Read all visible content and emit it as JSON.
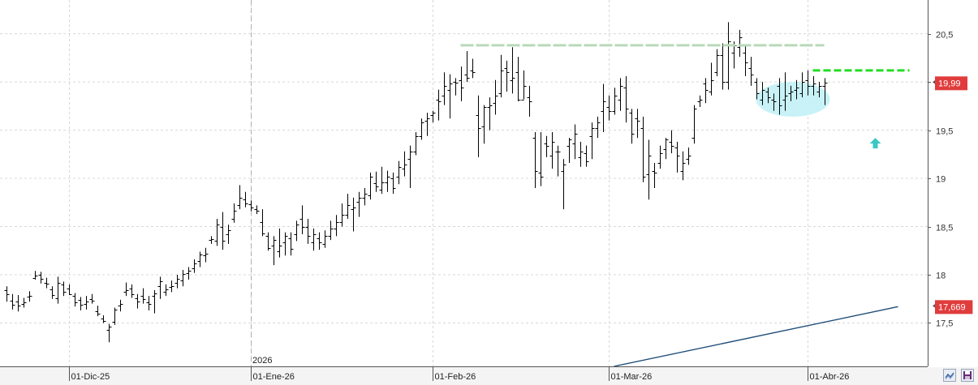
{
  "chart_data": {
    "type": "ohlc",
    "title": "",
    "xlabel": "",
    "ylabel": "",
    "ylim": [
      17.05,
      20.85
    ],
    "y_ticks": [
      {
        "value": 17.5,
        "label": "17,5"
      },
      {
        "value": 18,
        "label": "18"
      },
      {
        "value": 18.5,
        "label": "18,5"
      },
      {
        "value": 19,
        "label": "19"
      },
      {
        "value": 19.5,
        "label": "19,5"
      },
      {
        "value": 20,
        "label": ""
      },
      {
        "value": 20.5,
        "label": "20,5"
      }
    ],
    "x_ticks": [
      {
        "index": 11,
        "label": "01-Dic-25"
      },
      {
        "index": 43,
        "label": "01-Ene-26"
      },
      {
        "index": 75,
        "label": "01-Feb-26"
      },
      {
        "index": 106,
        "label": "01-Mar-26"
      },
      {
        "index": 141,
        "label": "01-Abr-26"
      }
    ],
    "year_marker": {
      "index": 43,
      "label": "2026"
    },
    "grid": true,
    "colors": {
      "bars": "#000000",
      "moving_average": "#1f4e79",
      "resistance_line": "#b9d9b9",
      "support_line": "#22dd22",
      "highlight_ellipse": "#c8f2f7",
      "arrow": "#3cc6c6",
      "price_tag": "#e03c3c",
      "grid": "#d8d8d8"
    },
    "series": [
      {
        "name": "",
        "type": "ohlc",
        "ohlc": [
          [
            17.84,
            17.88,
            17.72,
            17.8
          ],
          [
            17.73,
            17.8,
            17.64,
            17.69
          ],
          [
            17.72,
            17.79,
            17.62,
            17.68
          ],
          [
            17.7,
            17.76,
            17.66,
            17.71
          ],
          [
            17.77,
            17.83,
            17.72,
            17.78
          ],
          [
            17.97,
            18.04,
            17.95,
            17.99
          ],
          [
            18.0,
            18.03,
            17.91,
            17.96
          ],
          [
            17.92,
            17.97,
            17.86,
            17.91
          ],
          [
            17.85,
            17.88,
            17.75,
            17.79
          ],
          [
            17.76,
            17.98,
            17.7,
            17.92
          ],
          [
            17.9,
            17.93,
            17.78,
            17.82
          ],
          [
            17.86,
            17.9,
            17.79,
            17.8
          ],
          [
            17.78,
            17.81,
            17.67,
            17.71
          ],
          [
            17.74,
            17.77,
            17.63,
            17.69
          ],
          [
            17.7,
            17.78,
            17.64,
            17.72
          ],
          [
            17.75,
            17.8,
            17.7,
            17.73
          ],
          [
            17.62,
            17.68,
            17.57,
            17.6
          ],
          [
            17.55,
            17.58,
            17.5,
            17.52
          ],
          [
            17.43,
            17.49,
            17.3,
            17.46
          ],
          [
            17.51,
            17.66,
            17.48,
            17.64
          ],
          [
            17.68,
            17.74,
            17.62,
            17.7
          ],
          [
            17.82,
            17.92,
            17.78,
            17.84
          ],
          [
            17.86,
            17.9,
            17.76,
            17.8
          ],
          [
            17.76,
            17.8,
            17.65,
            17.72
          ],
          [
            17.78,
            17.86,
            17.7,
            17.75
          ],
          [
            17.71,
            17.78,
            17.63,
            17.7
          ],
          [
            17.78,
            17.84,
            17.6,
            17.81
          ],
          [
            17.88,
            17.98,
            17.75,
            17.93
          ],
          [
            17.82,
            17.9,
            17.78,
            17.85
          ],
          [
            17.87,
            17.94,
            17.82,
            17.88
          ],
          [
            17.92,
            18.0,
            17.86,
            17.96
          ],
          [
            17.94,
            18.05,
            17.88,
            18.01
          ],
          [
            18.02,
            18.08,
            17.95,
            18.04
          ],
          [
            18.07,
            18.16,
            18.02,
            18.12
          ],
          [
            18.14,
            18.24,
            18.08,
            18.21
          ],
          [
            18.2,
            18.28,
            18.13,
            18.22
          ],
          [
            18.36,
            18.4,
            18.32,
            18.37
          ],
          [
            18.35,
            18.58,
            18.3,
            18.52
          ],
          [
            18.5,
            18.65,
            18.26,
            18.35
          ],
          [
            18.42,
            18.52,
            18.32,
            18.46
          ],
          [
            18.58,
            18.74,
            18.54,
            18.66
          ],
          [
            18.72,
            18.93,
            18.68,
            18.8
          ],
          [
            18.78,
            18.86,
            18.7,
            18.74
          ],
          [
            18.73,
            18.77,
            18.66,
            18.7
          ],
          [
            18.68,
            18.72,
            18.63,
            18.66
          ],
          [
            18.55,
            18.68,
            18.4,
            18.43
          ],
          [
            18.4,
            18.44,
            18.25,
            18.28
          ],
          [
            18.3,
            18.4,
            18.1,
            18.36
          ],
          [
            18.24,
            18.48,
            18.18,
            18.3
          ],
          [
            18.34,
            18.44,
            18.2,
            18.4
          ],
          [
            18.38,
            18.44,
            18.2,
            18.27
          ],
          [
            18.42,
            18.56,
            18.35,
            18.52
          ],
          [
            18.58,
            18.72,
            18.42,
            18.5
          ],
          [
            18.5,
            18.58,
            18.32,
            18.4
          ],
          [
            18.34,
            18.48,
            18.25,
            18.42
          ],
          [
            18.38,
            18.44,
            18.26,
            18.34
          ],
          [
            18.32,
            18.46,
            18.28,
            18.4
          ],
          [
            18.4,
            18.56,
            18.36,
            18.48
          ],
          [
            18.48,
            18.62,
            18.4,
            18.55
          ],
          [
            18.55,
            18.74,
            18.5,
            18.62
          ],
          [
            18.62,
            18.84,
            18.58,
            18.72
          ],
          [
            18.68,
            18.8,
            18.45,
            18.7
          ],
          [
            18.76,
            18.86,
            18.6,
            18.8
          ],
          [
            18.8,
            18.9,
            18.72,
            18.84
          ],
          [
            18.82,
            19.06,
            18.78,
            19.02
          ],
          [
            18.95,
            19.07,
            18.86,
            18.92
          ],
          [
            18.88,
            19.12,
            18.84,
            18.96
          ],
          [
            18.96,
            19.08,
            18.86,
            19.02
          ],
          [
            19.0,
            19.06,
            18.84,
            18.9
          ],
          [
            19.02,
            19.18,
            18.94,
            19.12
          ],
          [
            19.1,
            19.28,
            19.02,
            19.14
          ],
          [
            19.2,
            19.34,
            18.9,
            19.28
          ],
          [
            19.28,
            19.48,
            19.24,
            19.44
          ],
          [
            19.44,
            19.62,
            19.4,
            19.58
          ],
          [
            19.6,
            19.68,
            19.44,
            19.62
          ],
          [
            19.66,
            19.7,
            19.58,
            19.68
          ],
          [
            19.82,
            19.92,
            19.6,
            19.8
          ],
          [
            19.86,
            20.1,
            19.76,
            19.96
          ],
          [
            19.92,
            20.08,
            19.62,
            19.98
          ],
          [
            20.0,
            20.04,
            19.86,
            19.99
          ],
          [
            20.02,
            20.16,
            19.8,
            19.94
          ],
          [
            20.08,
            20.32,
            20.0,
            20.04
          ],
          [
            20.12,
            20.24,
            20.04,
            20.1
          ],
          [
            19.66,
            19.86,
            19.22,
            19.52
          ],
          [
            19.54,
            19.76,
            19.36,
            19.74
          ],
          [
            19.74,
            19.84,
            19.5,
            19.76
          ],
          [
            19.78,
            20.02,
            19.66,
            19.86
          ],
          [
            19.88,
            20.28,
            19.84,
            20.12
          ],
          [
            20.14,
            20.22,
            19.9,
            20.1
          ],
          [
            20.02,
            20.36,
            19.88,
            20.04
          ],
          [
            20.1,
            20.26,
            19.8,
            19.82
          ],
          [
            19.82,
            20.12,
            19.82,
            19.96
          ],
          [
            19.84,
            19.96,
            19.64,
            19.8
          ],
          [
            19.42,
            19.48,
            18.9,
            19.08
          ],
          [
            19.06,
            19.48,
            18.92,
            19.02
          ],
          [
            19.36,
            19.44,
            19.22,
            19.34
          ],
          [
            19.24,
            19.48,
            19.1,
            19.38
          ],
          [
            19.28,
            19.34,
            19.02,
            19.28
          ],
          [
            19.08,
            19.2,
            18.68,
            19.14
          ],
          [
            19.34,
            19.42,
            19.16,
            19.4
          ],
          [
            19.36,
            19.56,
            19.2,
            19.46
          ],
          [
            19.22,
            19.38,
            19.12,
            19.28
          ],
          [
            19.26,
            19.34,
            19.12,
            19.18
          ],
          [
            19.44,
            19.58,
            19.2,
            19.52
          ],
          [
            19.52,
            19.64,
            19.42,
            19.58
          ],
          [
            19.7,
            19.98,
            19.48,
            19.8
          ],
          [
            19.74,
            19.86,
            19.6,
            19.7
          ],
          [
            19.7,
            19.94,
            19.66,
            19.86
          ],
          [
            19.82,
            20.04,
            19.7,
            19.96
          ],
          [
            19.94,
            20.06,
            19.58,
            19.72
          ],
          [
            19.68,
            19.72,
            19.36,
            19.46
          ],
          [
            19.62,
            19.72,
            19.42,
            19.6
          ],
          [
            19.52,
            19.64,
            18.96,
            19.02
          ],
          [
            19.04,
            19.4,
            18.78,
            19.24
          ],
          [
            19.08,
            19.16,
            18.9,
            19.06
          ],
          [
            19.16,
            19.34,
            19.1,
            19.26
          ],
          [
            19.3,
            19.42,
            19.2,
            19.4
          ],
          [
            19.38,
            19.5,
            19.26,
            19.34
          ],
          [
            19.32,
            19.38,
            19.06,
            19.24
          ],
          [
            19.08,
            19.28,
            18.98,
            19.16
          ],
          [
            19.2,
            19.32,
            19.14,
            19.24
          ],
          [
            19.42,
            19.76,
            19.36,
            19.72
          ],
          [
            19.8,
            19.86,
            19.74,
            19.82
          ],
          [
            19.98,
            20.04,
            19.78,
            19.92
          ],
          [
            19.9,
            20.2,
            19.86,
            20.02
          ],
          [
            20.1,
            20.34,
            20.06,
            20.28
          ],
          [
            20.28,
            20.4,
            19.92,
            20.0
          ],
          [
            20.0,
            20.62,
            19.92,
            20.42
          ],
          [
            20.3,
            20.42,
            20.14,
            20.38
          ],
          [
            20.36,
            20.54,
            20.26,
            20.46
          ],
          [
            20.3,
            20.38,
            20.06,
            20.2
          ],
          [
            20.14,
            20.26,
            19.96,
            20.08
          ],
          [
            20.0,
            20.04,
            19.82,
            19.88
          ],
          [
            19.82,
            20.0,
            19.76,
            19.92
          ],
          [
            19.9,
            19.94,
            19.78,
            19.84
          ],
          [
            19.82,
            19.88,
            19.7,
            19.8
          ],
          [
            19.96,
            20.04,
            19.66,
            19.76
          ],
          [
            19.82,
            20.1,
            19.7,
            19.86
          ],
          [
            19.88,
            19.96,
            19.8,
            19.9
          ],
          [
            19.92,
            20.02,
            19.82,
            19.94
          ],
          [
            19.88,
            20.1,
            19.84,
            20.0
          ],
          [
            20.02,
            20.12,
            19.86,
            19.96
          ],
          [
            19.96,
            20.06,
            19.86,
            19.98
          ],
          [
            19.9,
            20.0,
            19.84,
            19.96
          ],
          [
            19.96,
            20.04,
            19.76,
            19.99
          ]
        ]
      },
      {
        "name": "",
        "type": "line",
        "points": [
          [
            107,
            17.05
          ],
          [
            157,
            17.669
          ]
        ]
      }
    ],
    "annotations": {
      "resistance_line": {
        "from_index": 80,
        "to_index": 144,
        "value": 20.38
      },
      "support_line": {
        "from_index": 142,
        "to_index": 159,
        "value": 20.12
      },
      "highlight_ellipse": {
        "center_index": 138.5,
        "center_value": 19.82,
        "index_radius": 6.5,
        "value_radius": 0.18
      },
      "arrow": {
        "index": 153,
        "value": 19.42
      }
    },
    "price_tags": [
      {
        "value": 19.99,
        "label": "19,99"
      },
      {
        "value": 17.669,
        "label": "17,669"
      }
    ]
  },
  "controls": {
    "zoom_icon": "zoom-fit-icon",
    "save_icon": "save-disk-icon"
  }
}
